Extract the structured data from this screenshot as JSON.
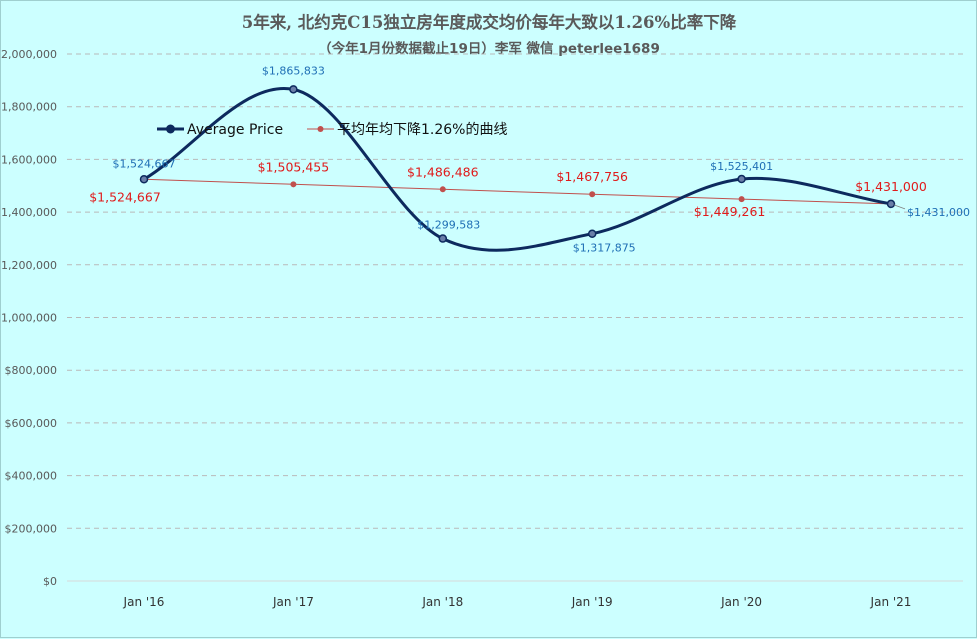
{
  "chart_data": {
    "type": "line",
    "title": "5年来, 北约克C15独立房年度成交均价每年大致以1.26%比率下降",
    "subtitle": "（今年1月份数据截止19日）李军  微信 peterlee1689",
    "categories": [
      "Jan '16",
      "Jan '17",
      "Jan '18",
      "Jan '19",
      "Jan '20",
      "Jan '21"
    ],
    "ylim": [
      0,
      2000000
    ],
    "y_ticks": [
      0,
      200000,
      400000,
      600000,
      800000,
      1000000,
      1200000,
      1400000,
      1600000,
      1800000,
      2000000
    ],
    "y_tick_labels": [
      "$0",
      "$200,000",
      "$400,000",
      "$600,000",
      "$800,000",
      "$1,000,000",
      "$1,200,000",
      "$1,400,000",
      "$1,600,000",
      "$1,800,000",
      "$2,000,000"
    ],
    "grid": true,
    "legend_position": "top-left",
    "series": [
      {
        "name": "Average Price",
        "color": "#0d2a5e",
        "style": "smooth",
        "values": [
          1524667,
          1865833,
          1299583,
          1317875,
          1525401,
          1431000
        ],
        "labels": [
          "$1,524,667",
          "$1,865,833",
          "$1,299,583",
          "$1,317,875",
          "$1,525,401",
          "$1,431,000"
        ]
      },
      {
        "name": "平均年均下降1.26%的曲线",
        "color": "#c0504d",
        "style": "straight",
        "values": [
          1524667,
          1505455,
          1486486,
          1467756,
          1449261,
          1431000
        ],
        "labels": [
          "$1,524,667",
          "$1,505,455",
          "$1,486,486",
          "$1,467,756",
          "$1,449,261",
          "$1,431,000"
        ]
      }
    ]
  }
}
